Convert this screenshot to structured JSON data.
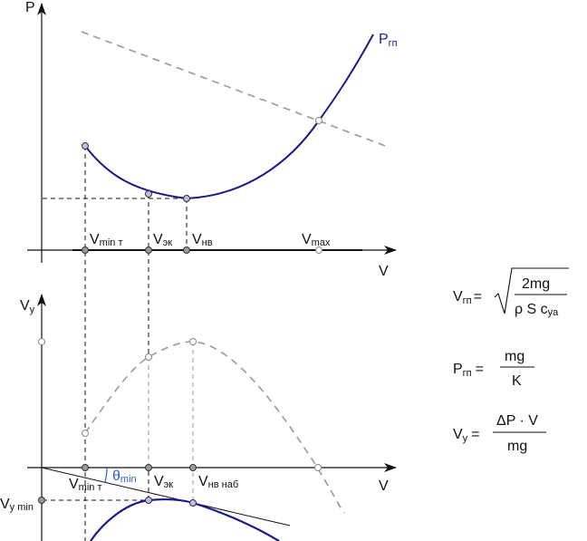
{
  "colors": {
    "curve": "#1a1a8c",
    "dashed": "#9a9a9a",
    "axis": "#111111",
    "point_fill": "#b9bfe8",
    "open_point": "#ffffff",
    "theta_label": "#2a5fd0"
  },
  "top_plot": {
    "y_axis": "P",
    "x_axis": "V",
    "curve_label": {
      "main": "P",
      "sub": "гп"
    },
    "x_ticks": [
      {
        "main": "V",
        "sub": "min т"
      },
      {
        "main": "V",
        "sub": "эк"
      },
      {
        "main": "V",
        "sub": "нв"
      },
      {
        "main": "V",
        "sub": "max"
      }
    ]
  },
  "bottom_plot": {
    "y_axis": {
      "main": "V",
      "sub": "y"
    },
    "x_axis": "V",
    "y_tick": {
      "main": "V",
      "sub": "y min"
    },
    "angle_label": {
      "main": "θ",
      "sub": "min"
    },
    "x_ticks": [
      {
        "main": "V",
        "sub": "min т"
      },
      {
        "main": "V",
        "sub": "эк"
      },
      {
        "main": "V",
        "sub": "нв наб"
      }
    ]
  },
  "formulas": [
    {
      "lhs_main": "V",
      "lhs_sub": "гп",
      "eq": "=",
      "num": "2mg",
      "den": "ρ S c",
      "den_sub": "ya",
      "sqrt": true
    },
    {
      "lhs_main": "P",
      "lhs_sub": "гп",
      "eq": "=",
      "num": "mg",
      "den": "K",
      "sqrt": false
    },
    {
      "lhs_main": "V",
      "lhs_sub": "y",
      "eq": "=",
      "num": "ΔP · V",
      "den": "mg",
      "sqrt": false
    }
  ]
}
